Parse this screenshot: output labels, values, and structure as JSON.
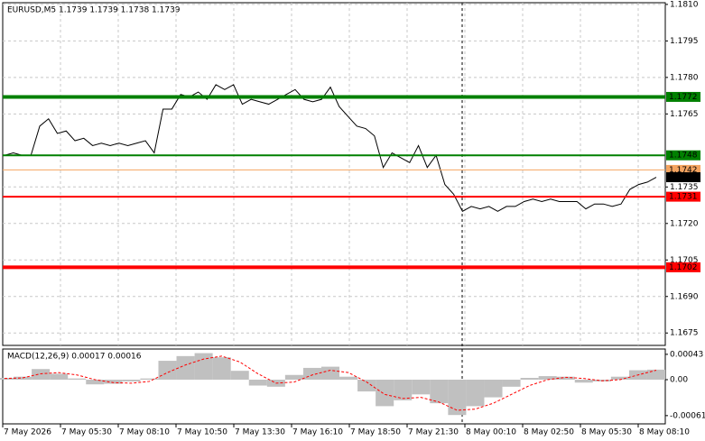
{
  "chart_data": [
    {
      "type": "line",
      "title": "EURUSD,M5  1.1739 1.1739 1.1738 1.1739",
      "x_labels": [
        "7 May 2026",
        "7 May 05:30",
        "7 May 08:10",
        "7 May 10:50",
        "7 May 13:30",
        "7 May 16:10",
        "7 May 18:50",
        "7 May 21:30",
        "8 May 00:10",
        "8 May 02:50",
        "8 May 05:30",
        "8 May 08:10"
      ],
      "series": [
        {
          "color": "#000000",
          "values": [
            1.1748,
            1.1749,
            1.1748,
            1.1748,
            1.176,
            1.1763,
            1.1757,
            1.1758,
            1.1754,
            1.1755,
            1.1752,
            1.1753,
            1.1752,
            1.1753,
            1.1752,
            1.1753,
            1.1754,
            1.1749,
            1.1767,
            1.1767,
            1.1773,
            1.1772,
            1.1774,
            1.1771,
            1.1777,
            1.1775,
            1.1777,
            1.1769,
            1.1771,
            1.177,
            1.1769,
            1.1771,
            1.1773,
            1.1775,
            1.1771,
            1.177,
            1.1771,
            1.1776,
            1.1768,
            1.1764,
            1.176,
            1.1759,
            1.1756,
            1.1743,
            1.1749,
            1.1747,
            1.1745,
            1.1752,
            1.1743,
            1.1748,
            1.1736,
            1.1732,
            1.1725,
            1.1727,
            1.1726,
            1.1727,
            1.1725,
            1.1727,
            1.1727,
            1.1729,
            1.173,
            1.1729,
            1.173,
            1.1729,
            1.1729,
            1.1729,
            1.1726,
            1.1728,
            1.1728,
            1.1727,
            1.1728,
            1.1734,
            1.1736,
            1.1737,
            1.1739
          ]
        }
      ],
      "levels": [
        {
          "value": 1.1772,
          "color": "#008000",
          "width": 4
        },
        {
          "value": 1.1748,
          "color": "#008000",
          "width": 2
        },
        {
          "value": 1.1742,
          "color": "#f4a460",
          "width": 1
        },
        {
          "value": 1.1731,
          "color": "#ff0000",
          "width": 2
        },
        {
          "value": 1.1702,
          "color": "#ff0000",
          "width": 4
        }
      ],
      "current_price": {
        "value": 1.1739,
        "color": "#000000"
      },
      "ylim": [
        1.16699,
        1.18107
      ],
      "yticks": [
        {
          "value": 1.181,
          "label": "1.1810"
        },
        1.1795,
        {
          "value": 1.178,
          "label": "1.1780"
        },
        1.1765,
        1.1735,
        {
          "value": 1.172,
          "label": "1.1720"
        },
        1.1705,
        {
          "value": 1.169,
          "label": "1.1690"
        },
        1.1675
      ],
      "grid": true
    },
    {
      "type": "macd",
      "title": "MACD(12,26,9) 0.00017 0.00016",
      "series": [
        {
          "color": "#c0c0c0",
          "values": [
            3e-05,
            5e-05,
            0.00018,
            0.0001,
            2e-05,
            -8e-05,
            -7e-05,
            -3e-05,
            2e-05,
            0.00032,
            0.0004,
            0.00045,
            0.00038,
            0.00015,
            -0.0001,
            -0.00012,
            8e-05,
            0.0002,
            0.00022,
            5e-05,
            -0.0002,
            -0.00045,
            -0.00035,
            -0.00025,
            -0.0004,
            -0.0006,
            -0.00045,
            -0.0003,
            -0.00012,
            3e-05,
            6e-05,
            5e-05,
            -5e-05,
            -3e-05,
            5e-05,
            0.00016,
            0.00017
          ]
        },
        {
          "color": "#ff0000",
          "values": [
            2e-05,
            3e-05,
            0.0001,
            0.00012,
            8e-05,
            0.0,
            -5e-05,
            -6e-05,
            -3e-05,
            0.00012,
            0.00025,
            0.00035,
            0.0004,
            0.0003,
            0.0001,
            -6e-05,
            -4e-05,
            8e-05,
            0.00016,
            0.00012,
            -4e-05,
            -0.00025,
            -0.00032,
            -0.0003,
            -0.00038,
            -0.00052,
            -0.0005,
            -0.0004,
            -0.00025,
            -0.0001,
            0.0,
            4e-05,
            2e-05,
            -2e-05,
            0.0,
            8e-05,
            0.00016
          ]
        }
      ],
      "ylim": [
        -0.00075,
        0.00052
      ],
      "yticks": [
        0.00043,
        {
          "value": 0,
          "label": "0.00"
        },
        -0.00061
      ]
    }
  ]
}
